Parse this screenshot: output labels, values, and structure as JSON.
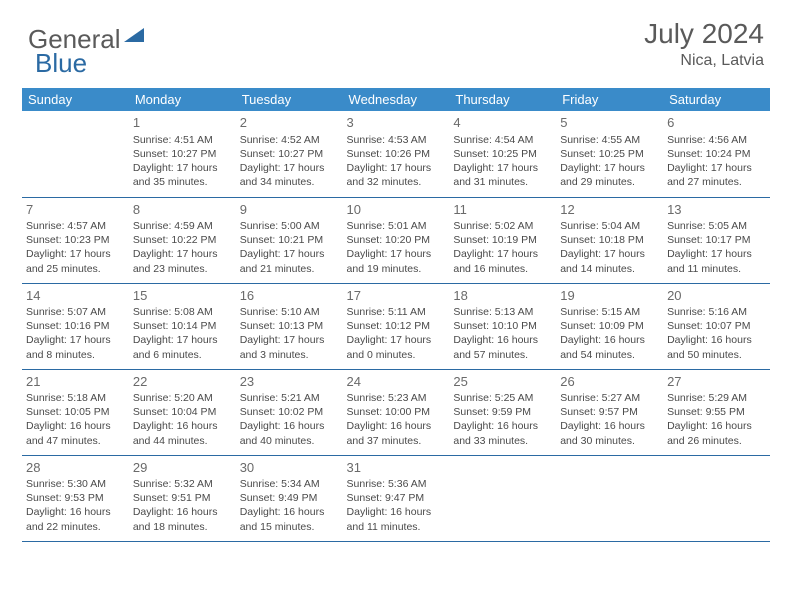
{
  "logo": {
    "word1": "General",
    "word2": "Blue",
    "triangle_color": "#2b6aa3"
  },
  "title": "July 2024",
  "location": "Nica, Latvia",
  "day_headers": [
    "Sunday",
    "Monday",
    "Tuesday",
    "Wednesday",
    "Thursday",
    "Friday",
    "Saturday"
  ],
  "header_bg": "#3a8bc9",
  "header_fg": "#ffffff",
  "row_border": "#2b6aa3",
  "text_color": "#4a4a4a",
  "weeks": [
    [
      null,
      {
        "n": "1",
        "sr": "4:51 AM",
        "ss": "10:27 PM",
        "d1": "17 hours",
        "d2": "and 35 minutes."
      },
      {
        "n": "2",
        "sr": "4:52 AM",
        "ss": "10:27 PM",
        "d1": "17 hours",
        "d2": "and 34 minutes."
      },
      {
        "n": "3",
        "sr": "4:53 AM",
        "ss": "10:26 PM",
        "d1": "17 hours",
        "d2": "and 32 minutes."
      },
      {
        "n": "4",
        "sr": "4:54 AM",
        "ss": "10:25 PM",
        "d1": "17 hours",
        "d2": "and 31 minutes."
      },
      {
        "n": "5",
        "sr": "4:55 AM",
        "ss": "10:25 PM",
        "d1": "17 hours",
        "d2": "and 29 minutes."
      },
      {
        "n": "6",
        "sr": "4:56 AM",
        "ss": "10:24 PM",
        "d1": "17 hours",
        "d2": "and 27 minutes."
      }
    ],
    [
      {
        "n": "7",
        "sr": "4:57 AM",
        "ss": "10:23 PM",
        "d1": "17 hours",
        "d2": "and 25 minutes."
      },
      {
        "n": "8",
        "sr": "4:59 AM",
        "ss": "10:22 PM",
        "d1": "17 hours",
        "d2": "and 23 minutes."
      },
      {
        "n": "9",
        "sr": "5:00 AM",
        "ss": "10:21 PM",
        "d1": "17 hours",
        "d2": "and 21 minutes."
      },
      {
        "n": "10",
        "sr": "5:01 AM",
        "ss": "10:20 PM",
        "d1": "17 hours",
        "d2": "and 19 minutes."
      },
      {
        "n": "11",
        "sr": "5:02 AM",
        "ss": "10:19 PM",
        "d1": "17 hours",
        "d2": "and 16 minutes."
      },
      {
        "n": "12",
        "sr": "5:04 AM",
        "ss": "10:18 PM",
        "d1": "17 hours",
        "d2": "and 14 minutes."
      },
      {
        "n": "13",
        "sr": "5:05 AM",
        "ss": "10:17 PM",
        "d1": "17 hours",
        "d2": "and 11 minutes."
      }
    ],
    [
      {
        "n": "14",
        "sr": "5:07 AM",
        "ss": "10:16 PM",
        "d1": "17 hours",
        "d2": "and 8 minutes."
      },
      {
        "n": "15",
        "sr": "5:08 AM",
        "ss": "10:14 PM",
        "d1": "17 hours",
        "d2": "and 6 minutes."
      },
      {
        "n": "16",
        "sr": "5:10 AM",
        "ss": "10:13 PM",
        "d1": "17 hours",
        "d2": "and 3 minutes."
      },
      {
        "n": "17",
        "sr": "5:11 AM",
        "ss": "10:12 PM",
        "d1": "17 hours",
        "d2": "and 0 minutes."
      },
      {
        "n": "18",
        "sr": "5:13 AM",
        "ss": "10:10 PM",
        "d1": "16 hours",
        "d2": "and 57 minutes."
      },
      {
        "n": "19",
        "sr": "5:15 AM",
        "ss": "10:09 PM",
        "d1": "16 hours",
        "d2": "and 54 minutes."
      },
      {
        "n": "20",
        "sr": "5:16 AM",
        "ss": "10:07 PM",
        "d1": "16 hours",
        "d2": "and 50 minutes."
      }
    ],
    [
      {
        "n": "21",
        "sr": "5:18 AM",
        "ss": "10:05 PM",
        "d1": "16 hours",
        "d2": "and 47 minutes."
      },
      {
        "n": "22",
        "sr": "5:20 AM",
        "ss": "10:04 PM",
        "d1": "16 hours",
        "d2": "and 44 minutes."
      },
      {
        "n": "23",
        "sr": "5:21 AM",
        "ss": "10:02 PM",
        "d1": "16 hours",
        "d2": "and 40 minutes."
      },
      {
        "n": "24",
        "sr": "5:23 AM",
        "ss": "10:00 PM",
        "d1": "16 hours",
        "d2": "and 37 minutes."
      },
      {
        "n": "25",
        "sr": "5:25 AM",
        "ss": "9:59 PM",
        "d1": "16 hours",
        "d2": "and 33 minutes."
      },
      {
        "n": "26",
        "sr": "5:27 AM",
        "ss": "9:57 PM",
        "d1": "16 hours",
        "d2": "and 30 minutes."
      },
      {
        "n": "27",
        "sr": "5:29 AM",
        "ss": "9:55 PM",
        "d1": "16 hours",
        "d2": "and 26 minutes."
      }
    ],
    [
      {
        "n": "28",
        "sr": "5:30 AM",
        "ss": "9:53 PM",
        "d1": "16 hours",
        "d2": "and 22 minutes."
      },
      {
        "n": "29",
        "sr": "5:32 AM",
        "ss": "9:51 PM",
        "d1": "16 hours",
        "d2": "and 18 minutes."
      },
      {
        "n": "30",
        "sr": "5:34 AM",
        "ss": "9:49 PM",
        "d1": "16 hours",
        "d2": "and 15 minutes."
      },
      {
        "n": "31",
        "sr": "5:36 AM",
        "ss": "9:47 PM",
        "d1": "16 hours",
        "d2": "and 11 minutes."
      },
      null,
      null,
      null
    ]
  ],
  "labels": {
    "sunrise": "Sunrise: ",
    "sunset": "Sunset: ",
    "daylight": "Daylight: "
  }
}
